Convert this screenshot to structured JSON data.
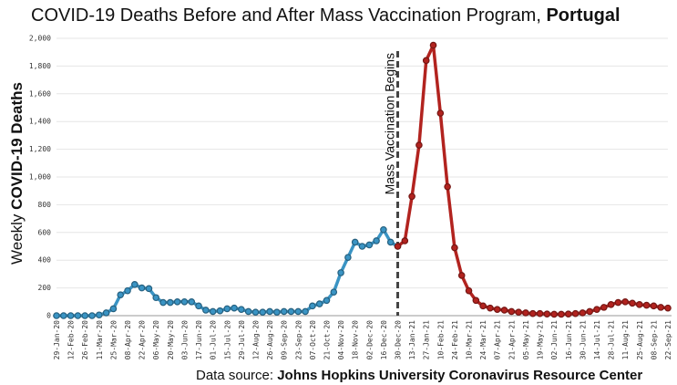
{
  "chart_data": {
    "type": "line",
    "title": "COVID-19 Deaths Before and After Mass Vaccination Program,",
    "title_emphasis": "Portugal",
    "y_label": "Weekly",
    "y_label_emphasis": "COVID-19 Deaths",
    "source": "Data source:",
    "source_emphasis": "Johns Hopkins University Coronavirus Resource Center",
    "annotation": {
      "text": "Mass Vaccination Begins",
      "x": "30-Dec-20"
    },
    "categories": [
      "29-Jan-20",
      null,
      "12-Feb-20",
      null,
      "26-Feb-20",
      null,
      "11-Mar-20",
      null,
      "25-Mar-20",
      null,
      "08-Apr-20",
      null,
      "22-Apr-20",
      null,
      "06-May-20",
      null,
      "20-May-20",
      null,
      "03-Jun-20",
      null,
      "17-Jun-20",
      null,
      "01-Jul-20",
      null,
      "15-Jul-20",
      null,
      "29-Jul-20",
      null,
      "12-Aug-20",
      null,
      "26-Aug-20",
      null,
      "09-Sep-20",
      null,
      "23-Sep-20",
      null,
      "07-Oct-20",
      null,
      "21-Oct-20",
      null,
      "04-Nov-20",
      null,
      "18-Nov-20",
      null,
      "02-Dec-20",
      null,
      "16-Dec-20",
      null,
      "30-Dec-20",
      null,
      "13-Jan-21",
      null,
      "27-Jan-21",
      null,
      "10-Feb-21",
      null,
      "24-Feb-21",
      null,
      "10-Mar-21",
      null,
      "24-Mar-21",
      null,
      "07-Apr-21",
      null,
      "21-Apr-21",
      null,
      "05-May-21",
      null,
      "19-May-21",
      null,
      "02-Jun-21",
      null,
      "16-Jun-21",
      null,
      "30-Jun-21",
      null,
      "14-Jul-21",
      null,
      "28-Jul-21",
      null,
      "11-Aug-21",
      null,
      "25-Aug-21",
      null,
      "08-Sep-21",
      null,
      "22-Sep-21"
    ],
    "series": [
      {
        "name": "Before",
        "color": "#3a94c4",
        "values": [
          0,
          0,
          0,
          0,
          0,
          0,
          5,
          20,
          50,
          150,
          180,
          225,
          200,
          195,
          130,
          95,
          95,
          100,
          100,
          100,
          70,
          40,
          30,
          35,
          50,
          55,
          45,
          30,
          25,
          25,
          30,
          25,
          30,
          30,
          30,
          30,
          70,
          85,
          110,
          170,
          310,
          420,
          530,
          500,
          510,
          540,
          620,
          530,
          500,
          null,
          null,
          null,
          null,
          null,
          null,
          null,
          null,
          null,
          null,
          null,
          null,
          null,
          null,
          null,
          null,
          null,
          null,
          null,
          null,
          null,
          null,
          null,
          null,
          null,
          null,
          null,
          null,
          null,
          null,
          null,
          null,
          null,
          null,
          null,
          null,
          null,
          null
        ]
      },
      {
        "name": "After",
        "color": "#b2231f",
        "values": [
          null,
          null,
          null,
          null,
          null,
          null,
          null,
          null,
          null,
          null,
          null,
          null,
          null,
          null,
          null,
          null,
          null,
          null,
          null,
          null,
          null,
          null,
          null,
          null,
          null,
          null,
          null,
          null,
          null,
          null,
          null,
          null,
          null,
          null,
          null,
          null,
          null,
          null,
          null,
          null,
          null,
          null,
          null,
          null,
          null,
          null,
          null,
          null,
          500,
          540,
          860,
          1230,
          1840,
          1950,
          1460,
          930,
          490,
          290,
          180,
          110,
          70,
          55,
          45,
          40,
          30,
          25,
          20,
          15,
          15,
          12,
          10,
          10,
          12,
          15,
          20,
          30,
          45,
          60,
          80,
          95,
          100,
          90,
          80,
          75,
          70,
          60,
          55
        ]
      }
    ],
    "ylim": [
      0,
      2000
    ],
    "yticks": [
      0,
      200,
      400,
      600,
      800,
      {
        "value": 1000,
        "label": "1,000"
      },
      {
        "value": 1200,
        "label": "1,200"
      },
      {
        "value": 1400,
        "label": "1,400"
      },
      {
        "value": 1600,
        "label": "1,600"
      },
      {
        "value": 1800,
        "label": "1,800"
      },
      {
        "value": 2000,
        "label": "2,000"
      }
    ],
    "grid": true
  }
}
